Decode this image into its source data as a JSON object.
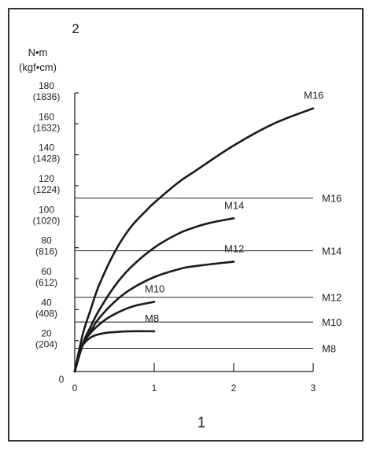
{
  "chart_data": {
    "type": "line",
    "corner_labels": {
      "y_axis_number": "2",
      "x_axis_number": "1"
    },
    "y_unit_lines": [
      "N•m",
      "(kgf•cm)"
    ],
    "x_ticks": [
      {
        "value": 0,
        "label": "0"
      },
      {
        "value": 1,
        "label": "1"
      },
      {
        "value": 2,
        "label": "2"
      },
      {
        "value": 3,
        "label": "3"
      }
    ],
    "y_origin_label": "0",
    "y_ticks": [
      {
        "value": 20,
        "label": "20",
        "label2": "(204)"
      },
      {
        "value": 40,
        "label": "40",
        "label2": "(408)"
      },
      {
        "value": 60,
        "label": "60",
        "label2": "(612)"
      },
      {
        "value": 80,
        "label": "80",
        "label2": "(816)"
      },
      {
        "value": 100,
        "label": "100",
        "label2": "(1020)"
      },
      {
        "value": 120,
        "label": "120",
        "label2": "(1224)"
      },
      {
        "value": 140,
        "label": "140",
        "label2": "(1428)"
      },
      {
        "value": 160,
        "label": "160",
        "label2": "(1632)"
      },
      {
        "value": 180,
        "label": "180",
        "label2": "(1836)"
      }
    ],
    "xlim": [
      0,
      3
    ],
    "ylim": [
      0,
      180
    ],
    "series": [
      {
        "name": "M8",
        "x": [
          0,
          0.05,
          0.1,
          0.2,
          0.3,
          0.4,
          0.5,
          0.7,
          1.0
        ],
        "y": [
          0,
          11,
          17,
          22,
          24,
          25,
          25.5,
          26,
          26
        ]
      },
      {
        "name": "M10",
        "x": [
          0,
          0.05,
          0.1,
          0.2,
          0.3,
          0.4,
          0.5,
          0.6,
          0.7,
          0.8,
          1.0
        ],
        "y": [
          0,
          12,
          18,
          25,
          30,
          34,
          37,
          39.5,
          41.5,
          43,
          45
        ]
      },
      {
        "name": "M12",
        "x": [
          0,
          0.1,
          0.2,
          0.3,
          0.5,
          0.7,
          1.0,
          1.3,
          1.5,
          2.0
        ],
        "y": [
          0,
          17,
          26,
          34,
          45,
          53,
          61,
          66,
          68,
          71
        ]
      },
      {
        "name": "M14",
        "x": [
          0,
          0.1,
          0.2,
          0.3,
          0.5,
          0.7,
          1.0,
          1.3,
          1.5,
          1.7,
          2.0
        ],
        "y": [
          0,
          18,
          29,
          39,
          55,
          67,
          80,
          89,
          93,
          96,
          99
        ]
      },
      {
        "name": "M16",
        "x": [
          0,
          0.1,
          0.2,
          0.3,
          0.5,
          0.7,
          0.9,
          1.0,
          1.3,
          1.5,
          2.0,
          2.5,
          3.0
        ],
        "y": [
          0,
          24,
          40,
          55,
          77,
          93,
          104,
          109,
          122,
          129,
          146,
          160,
          170
        ]
      }
    ],
    "reference_lines": [
      {
        "name": "M8",
        "y": 15
      },
      {
        "name": "M10",
        "y": 32
      },
      {
        "name": "M12",
        "y": 48
      },
      {
        "name": "M14",
        "y": 78
      },
      {
        "name": "M16",
        "y": 112
      }
    ]
  }
}
